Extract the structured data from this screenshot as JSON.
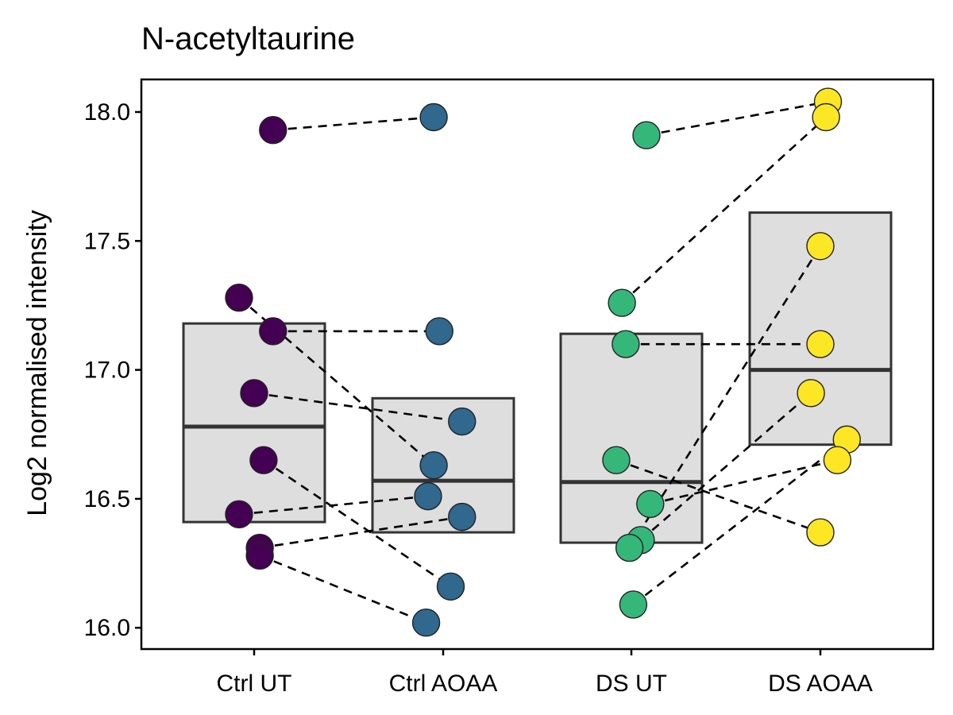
{
  "chart_data": {
    "type": "box-paired-scatter",
    "title": "N-acetyltaurine",
    "xlabel": "",
    "ylabel": "Log2 normalised intensity",
    "ylim": [
      15.93,
      18.13
    ],
    "yticks": [
      16.0,
      16.5,
      17.0,
      17.5,
      18.0
    ],
    "grid": false,
    "legend": "none",
    "categories": [
      "Ctrl UT",
      "Ctrl AOAA",
      "DS UT",
      "DS AOAA"
    ],
    "colors": [
      "#440154",
      "#30688E",
      "#35B779",
      "#FDE725"
    ],
    "box_fill": "#DEDEDE",
    "box_stroke": "#333333",
    "boxes": [
      {
        "low": 16.41,
        "mid": 16.78,
        "high": 17.18
      },
      {
        "low": 16.37,
        "mid": 16.57,
        "high": 16.89
      },
      {
        "low": 16.33,
        "mid": 16.565,
        "high": 17.14
      },
      {
        "low": 16.71,
        "mid": 17.0,
        "high": 17.61
      }
    ],
    "points": [
      [
        {
          "y": 17.93,
          "j": 0.1
        },
        {
          "y": 17.28,
          "j": -0.08
        },
        {
          "y": 17.15,
          "j": 0.1
        },
        {
          "y": 16.91,
          "j": 0.0
        },
        {
          "y": 16.65,
          "j": 0.05
        },
        {
          "y": 16.44,
          "j": -0.08
        },
        {
          "y": 16.31,
          "j": 0.03
        },
        {
          "y": 16.28,
          "j": 0.03
        }
      ],
      [
        {
          "y": 17.98,
          "j": -0.05
        },
        {
          "y": 17.15,
          "j": -0.02
        },
        {
          "y": 16.8,
          "j": 0.1
        },
        {
          "y": 16.63,
          "j": -0.05
        },
        {
          "y": 16.51,
          "j": -0.08
        },
        {
          "y": 16.43,
          "j": 0.1
        },
        {
          "y": 16.16,
          "j": 0.04
        },
        {
          "y": 16.02,
          "j": -0.09
        }
      ],
      [
        {
          "y": 17.91,
          "j": 0.08
        },
        {
          "y": 17.26,
          "j": -0.05
        },
        {
          "y": 17.1,
          "j": -0.03
        },
        {
          "y": 16.65,
          "j": -0.08
        },
        {
          "y": 16.48,
          "j": 0.1
        },
        {
          "y": 16.34,
          "j": 0.05
        },
        {
          "y": 16.31,
          "j": -0.01
        },
        {
          "y": 16.09,
          "j": 0.01
        }
      ],
      [
        {
          "y": 18.04,
          "j": 0.04
        },
        {
          "y": 17.98,
          "j": 0.03
        },
        {
          "y": 17.48,
          "j": 0.0
        },
        {
          "y": 17.1,
          "j": 0.0
        },
        {
          "y": 16.91,
          "j": -0.05
        },
        {
          "y": 16.73,
          "j": 0.14
        },
        {
          "y": 16.65,
          "j": 0.09
        },
        {
          "y": 16.37,
          "j": 0.0
        }
      ]
    ],
    "pairs": [
      [
        [
          0,
          0
        ],
        [
          1,
          0
        ]
      ],
      [
        [
          0,
          2
        ],
        [
          1,
          1
        ]
      ],
      [
        [
          0,
          3
        ],
        [
          1,
          2
        ]
      ],
      [
        [
          0,
          1
        ],
        [
          1,
          3
        ]
      ],
      [
        [
          0,
          5
        ],
        [
          1,
          4
        ]
      ],
      [
        [
          0,
          6
        ],
        [
          1,
          5
        ]
      ],
      [
        [
          0,
          4
        ],
        [
          1,
          6
        ]
      ],
      [
        [
          0,
          7
        ],
        [
          1,
          7
        ]
      ],
      [
        [
          2,
          0
        ],
        [
          3,
          0
        ]
      ],
      [
        [
          2,
          1
        ],
        [
          3,
          1
        ]
      ],
      [
        [
          2,
          6
        ],
        [
          3,
          2
        ]
      ],
      [
        [
          2,
          2
        ],
        [
          3,
          3
        ]
      ],
      [
        [
          2,
          5
        ],
        [
          3,
          4
        ]
      ],
      [
        [
          2,
          7
        ],
        [
          3,
          5
        ]
      ],
      [
        [
          2,
          4
        ],
        [
          3,
          6
        ]
      ],
      [
        [
          2,
          3
        ],
        [
          3,
          7
        ]
      ]
    ]
  }
}
